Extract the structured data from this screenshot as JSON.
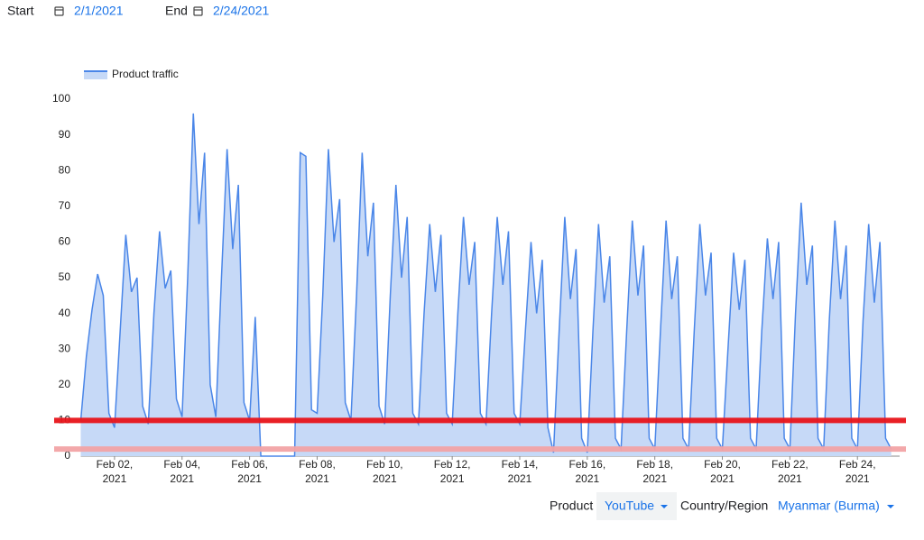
{
  "header": {
    "start_label": "Start",
    "start_date": "2/1/2021",
    "end_label": "End",
    "end_date": "2/24/2021"
  },
  "controls": {
    "product_label": "Product",
    "product_value": "YouTube",
    "region_label": "Country/Region",
    "region_value": "Myanmar (Burma)"
  },
  "chart_data": {
    "type": "area",
    "x": [
      0,
      4,
      8,
      12,
      16,
      20,
      24,
      28,
      32,
      36,
      40,
      44,
      48,
      52,
      56,
      60,
      64,
      68,
      72,
      76,
      80,
      84,
      88,
      92,
      96,
      100,
      104,
      108,
      112,
      116,
      120,
      124,
      128,
      132,
      136,
      140,
      144,
      148,
      152,
      156,
      160,
      164,
      168,
      172,
      176,
      180,
      184,
      188,
      192,
      196,
      200,
      204,
      208,
      212,
      216,
      220,
      224,
      228,
      232,
      236,
      240,
      244,
      248,
      252,
      256,
      260,
      264,
      268,
      272,
      276,
      280,
      284,
      288,
      292,
      296,
      300,
      304,
      308,
      312,
      316,
      320,
      324,
      328,
      332,
      336,
      340,
      344,
      348,
      352,
      356,
      360,
      364,
      368,
      372,
      376,
      380,
      384,
      388,
      392,
      396,
      400,
      404,
      408,
      412,
      416,
      420,
      424,
      428,
      432,
      436,
      440,
      444,
      448,
      452,
      456,
      460,
      464,
      468,
      472,
      476,
      480,
      484,
      488,
      492,
      496,
      500,
      504,
      508,
      512,
      516,
      520,
      524,
      528,
      532,
      536,
      540,
      544,
      548,
      552,
      556,
      560,
      564,
      568,
      572,
      576
    ],
    "series": [
      {
        "name": "Product traffic",
        "color": "#4a86e8",
        "fill": "#c6d9f7",
        "values": [
          10,
          28,
          41,
          51,
          45,
          12,
          8,
          35,
          62,
          46,
          50,
          14,
          9,
          40,
          63,
          47,
          52,
          16,
          11,
          50,
          96,
          65,
          85,
          20,
          11,
          50,
          86,
          58,
          76,
          15,
          10,
          39,
          0,
          0,
          0,
          0,
          0,
          0,
          0,
          85,
          84,
          13,
          12,
          45,
          86,
          60,
          72,
          15,
          10,
          45,
          85,
          56,
          71,
          14,
          9,
          45,
          76,
          50,
          67,
          12,
          9,
          40,
          65,
          46,
          62,
          12,
          9,
          40,
          67,
          48,
          60,
          12,
          9,
          40,
          67,
          48,
          63,
          12,
          9,
          35,
          60,
          40,
          55,
          8,
          1,
          35,
          67,
          44,
          58,
          5,
          1,
          35,
          65,
          43,
          56,
          5,
          2,
          35,
          66,
          45,
          59,
          5,
          2,
          35,
          66,
          44,
          56,
          5,
          2,
          35,
          65,
          45,
          57,
          5,
          2,
          30,
          57,
          41,
          55,
          5,
          2,
          35,
          61,
          44,
          60,
          5,
          2,
          40,
          71,
          48,
          59,
          5,
          2,
          38,
          66,
          44,
          59,
          5,
          2,
          38,
          65,
          43,
          60,
          5,
          2
        ]
      }
    ],
    "reference_lines": [
      {
        "value": 10,
        "color": "#e8141a"
      },
      {
        "value": 2,
        "color": "#f2a3a5"
      }
    ],
    "xlim": [
      0,
      582
    ],
    "xticks": [
      {
        "value": 24,
        "label": "Feb 02, 2021"
      },
      {
        "value": 72,
        "label": "Feb 04, 2021"
      },
      {
        "value": 120,
        "label": "Feb 06, 2021"
      },
      {
        "value": 168,
        "label": "Feb 08, 2021"
      },
      {
        "value": 216,
        "label": "Feb 10, 2021"
      },
      {
        "value": 264,
        "label": "Feb 12, 2021"
      },
      {
        "value": 312,
        "label": "Feb 14, 2021"
      },
      {
        "value": 360,
        "label": "Feb 16, 2021"
      },
      {
        "value": 408,
        "label": "Feb 18, 2021"
      },
      {
        "value": 456,
        "label": "Feb 20, 2021"
      },
      {
        "value": 504,
        "label": "Feb 22, 2021"
      },
      {
        "value": 552,
        "label": "Feb 24, 2021"
      }
    ],
    "ylim": [
      0,
      100
    ],
    "yticks": [
      0,
      10,
      20,
      30,
      40,
      50,
      60,
      70,
      80,
      90,
      100
    ],
    "grid": false,
    "legend": "top-left"
  }
}
